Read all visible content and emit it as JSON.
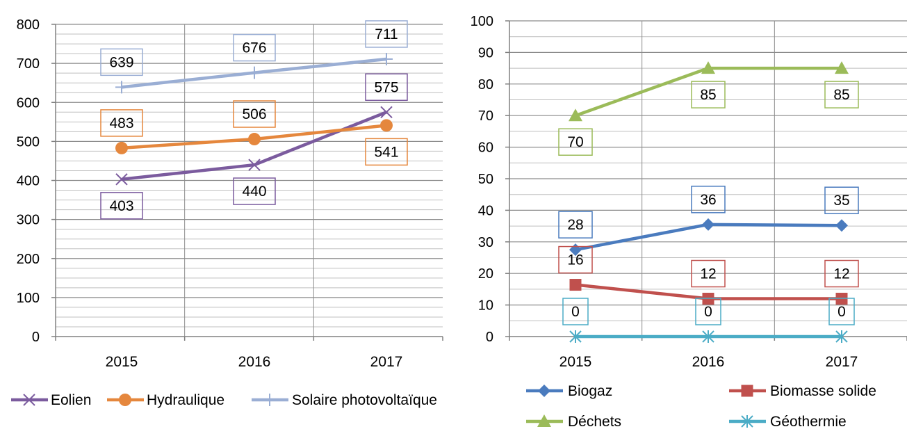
{
  "chart_data": [
    {
      "type": "line",
      "categories": [
        "2015",
        "2016",
        "2017"
      ],
      "ylim": [
        0,
        800
      ],
      "y_ticks": [
        "0",
        "100",
        "200",
        "300",
        "400",
        "500",
        "600",
        "700",
        "800"
      ],
      "grid": true,
      "legend_position": "bottom",
      "series": [
        {
          "name": "Eolien",
          "values": [
            403,
            440,
            575
          ],
          "labels": [
            "403",
            "440",
            "575"
          ],
          "color": "#7B5B9E",
          "marker": "x",
          "label_pos": [
            "below",
            "below",
            "above"
          ]
        },
        {
          "name": "Hydraulique",
          "values": [
            483,
            506,
            541
          ],
          "labels": [
            "483",
            "506",
            "541"
          ],
          "color": "#E5873D",
          "marker": "circle",
          "label_pos": [
            "above",
            "above",
            "below"
          ]
        },
        {
          "name": "Solaire photovoltaïque",
          "values": [
            639,
            676,
            711
          ],
          "labels": [
            "639",
            "676",
            "711"
          ],
          "color": "#9AAED4",
          "marker": "plus",
          "label_pos": [
            "above",
            "above",
            "above"
          ]
        }
      ]
    },
    {
      "type": "line",
      "categories": [
        "2015",
        "2016",
        "2017"
      ],
      "ylim": [
        0,
        100
      ],
      "y_ticks": [
        "0",
        "10",
        "20",
        "30",
        "40",
        "50",
        "60",
        "70",
        "80",
        "90",
        "100"
      ],
      "grid": true,
      "legend_position": "bottom",
      "series": [
        {
          "name": "Biogaz",
          "values": [
            27.5,
            35.5,
            35.2
          ],
          "labels": [
            "28",
            "36",
            "35"
          ],
          "color": "#4A7BBE",
          "marker": "diamond",
          "label_pos": [
            "above",
            "above",
            "above"
          ]
        },
        {
          "name": "Biomasse solide",
          "values": [
            16.4,
            12,
            12
          ],
          "labels": [
            "16",
            "12",
            "12"
          ],
          "color": "#C0504D",
          "marker": "square",
          "label_pos": [
            "above",
            "above",
            "above"
          ]
        },
        {
          "name": "Déchets",
          "values": [
            70,
            85,
            85
          ],
          "labels": [
            "70",
            "85",
            "85"
          ],
          "color": "#9BBB59",
          "marker": "triangle",
          "label_pos": [
            "below",
            "below",
            "below"
          ]
        },
        {
          "name": "Géothermie",
          "values": [
            0,
            0,
            0
          ],
          "labels": [
            "0",
            "0",
            "0"
          ],
          "color": "#4BACC6",
          "marker": "asterisk",
          "label_pos": [
            "above",
            "above",
            "above"
          ]
        }
      ]
    }
  ]
}
